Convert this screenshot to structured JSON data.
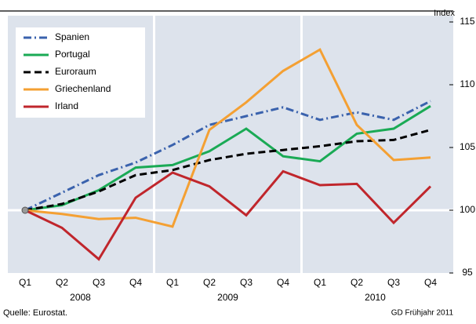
{
  "chart_data": {
    "type": "line",
    "y_axis_label": "Index",
    "categories": [
      "Q1",
      "Q2",
      "Q3",
      "Q4",
      "Q1",
      "Q2",
      "Q3",
      "Q4",
      "Q1",
      "Q2",
      "Q3",
      "Q4"
    ],
    "years": [
      "2008",
      "2009",
      "2010"
    ],
    "ylim": [
      95,
      115
    ],
    "yticks": [
      95,
      100,
      105,
      110,
      115
    ],
    "hline": 100,
    "source": "Quelle: Eurostat.",
    "credit": "GD Frühjahr 2011",
    "series": [
      {
        "name": "Spanien",
        "color": "#3a62ad",
        "style": "dash-dot",
        "values": [
          100,
          101.4,
          102.8,
          103.8,
          105.2,
          106.8,
          107.5,
          108.2,
          107.2,
          107.8,
          107.2,
          108.7
        ]
      },
      {
        "name": "Portugal",
        "color": "#1aaa55",
        "style": "solid",
        "values": [
          100,
          100.4,
          101.6,
          103.4,
          103.6,
          104.7,
          106.5,
          104.3,
          103.9,
          106.1,
          106.5,
          108.3
        ]
      },
      {
        "name": "Euroraum",
        "color": "#000000",
        "style": "dash",
        "values": [
          100,
          100.5,
          101.5,
          102.8,
          103.2,
          104.0,
          104.5,
          104.8,
          105.1,
          105.5,
          105.6,
          106.4
        ]
      },
      {
        "name": "Griechenland",
        "color": "#f4a033",
        "style": "solid",
        "values": [
          100,
          99.7,
          99.3,
          99.4,
          98.7,
          106.4,
          108.6,
          111.1,
          112.8,
          106.8,
          104.0,
          104.2
        ]
      },
      {
        "name": "Irland",
        "color": "#c0262c",
        "style": "solid",
        "values": [
          100,
          98.6,
          96.1,
          101.0,
          103.0,
          101.9,
          99.6,
          103.1,
          102.0,
          102.1,
          99.0,
          101.9
        ]
      }
    ]
  }
}
